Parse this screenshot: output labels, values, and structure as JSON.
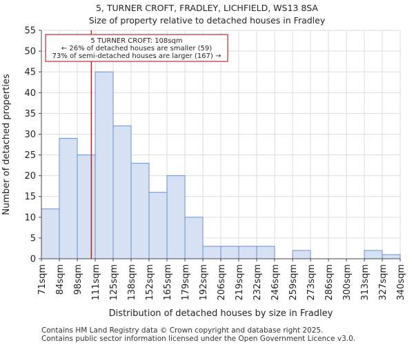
{
  "chart_data": {
    "type": "bar",
    "title": "5, TURNER CROFT, FRADLEY, LICHFIELD, WS13 8SA",
    "subtitle": "Size of property relative to detached houses in Fradley",
    "xlabel": "Distribution of detached houses by size in Fradley",
    "ylabel": "Number of detached properties",
    "ylim": [
      0,
      55
    ],
    "yticks": [
      0,
      5,
      10,
      15,
      20,
      25,
      30,
      35,
      40,
      45,
      50,
      55
    ],
    "bin_edges": [
      "71sqm",
      "84sqm",
      "98sqm",
      "111sqm",
      "125sqm",
      "138sqm",
      "152sqm",
      "165sqm",
      "179sqm",
      "192sqm",
      "206sqm",
      "219sqm",
      "232sqm",
      "246sqm",
      "259sqm",
      "273sqm",
      "286sqm",
      "300sqm",
      "313sqm",
      "327sqm",
      "340sqm"
    ],
    "values": [
      12,
      29,
      25,
      45,
      32,
      23,
      16,
      20,
      10,
      3,
      3,
      3,
      3,
      0,
      2,
      0,
      0,
      0,
      2,
      1
    ],
    "marker_value": 108,
    "marker_bin_position": 2.78,
    "annotation": {
      "line1": "5 TURNER CROFT: 108sqm",
      "line2": "← 26% of detached houses are smaller (59)",
      "line3": "73% of semi-detached houses are larger (167) →"
    },
    "colors": {
      "bar_fill": "#d6e2f3",
      "bar_stroke": "#6a8fc9",
      "marker": "#aa0000",
      "annotation_border": "#aa0000"
    }
  },
  "footer": {
    "line1": "Contains HM Land Registry data © Crown copyright and database right 2025.",
    "line2": "Contains public sector information licensed under the Open Government Licence v3.0."
  }
}
